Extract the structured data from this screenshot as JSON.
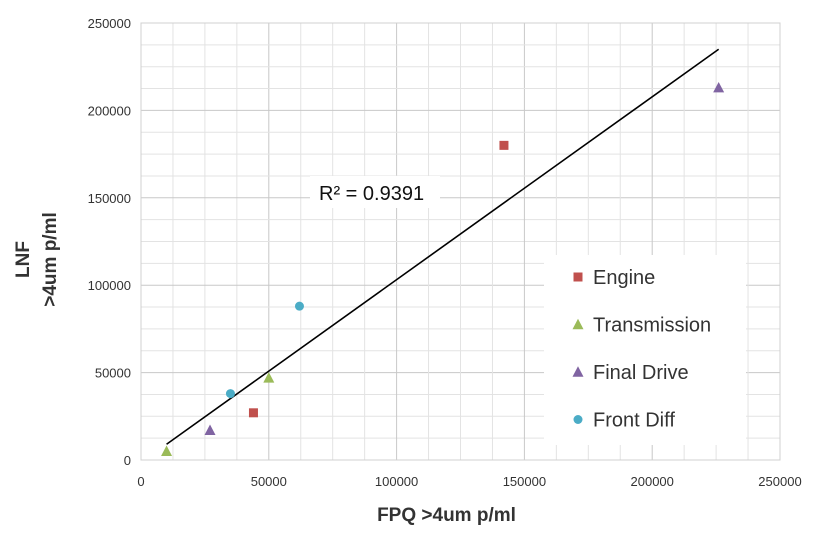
{
  "chart_data": {
    "type": "scatter",
    "title": "",
    "xlabel": "FPQ  >4um p/ml",
    "ylabel_lines": [
      "LNF",
      ">4um p/ml"
    ],
    "xlim": [
      0,
      250000
    ],
    "ylim": [
      0,
      250000
    ],
    "xticks": [
      0,
      50000,
      100000,
      150000,
      200000,
      250000
    ],
    "yticks": [
      0,
      50000,
      100000,
      150000,
      200000,
      250000
    ],
    "grid": true,
    "legend_position": "right",
    "series": [
      {
        "name": "Engine",
        "marker": "square",
        "color": "#c0504d",
        "points": [
          [
            44000,
            27000
          ],
          [
            142000,
            180000
          ]
        ]
      },
      {
        "name": "Transmission",
        "marker": "triangle",
        "color": "#9bbb59",
        "points": [
          [
            10000,
            5000
          ],
          [
            50000,
            47000
          ]
        ]
      },
      {
        "name": "Final Drive",
        "marker": "triangle",
        "color": "#8064a2",
        "points": [
          [
            27000,
            17000
          ],
          [
            226000,
            213000
          ]
        ]
      },
      {
        "name": "Front Diff",
        "marker": "circle",
        "color": "#4bacc6",
        "points": [
          [
            35000,
            38000
          ],
          [
            62000,
            88000
          ]
        ]
      }
    ],
    "trendline": {
      "x": [
        10000,
        226000
      ],
      "y": [
        9000,
        235000
      ],
      "label": "R² = 0.9391",
      "color": "#000000"
    }
  }
}
